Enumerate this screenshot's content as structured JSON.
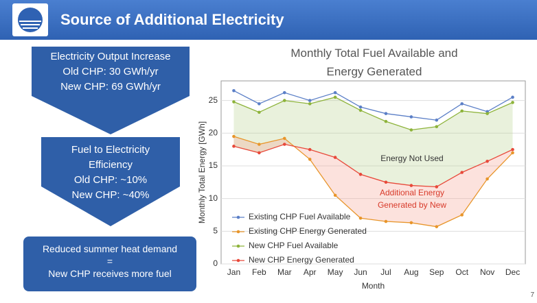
{
  "header": {
    "title": "Source of Additional Electricity"
  },
  "boxes": [
    {
      "lines": [
        "Electricity Output Increase",
        "Old CHP: 30 GWh/yr",
        "New CHP: 69 GWh/yr"
      ]
    },
    {
      "lines": [
        "Fuel to Electricity Efficiency",
        "Old CHP: ~10%",
        "New CHP: ~40%"
      ]
    },
    {
      "lines": [
        "Reduced summer heat demand",
        "=",
        "New CHP receives more fuel"
      ]
    }
  ],
  "page_number": "7",
  "chart_data": {
    "type": "line",
    "title": "Monthly Total Fuel Available and Energy Generated",
    "x_label": "Month",
    "y_label": "Monthly Total Energy [GWh]",
    "categories": [
      "Jan",
      "Feb",
      "Mar",
      "Apr",
      "May",
      "Jun",
      "Jul",
      "Aug",
      "Sep",
      "Oct",
      "Nov",
      "Dec"
    ],
    "series": [
      {
        "name": "Existing CHP Fuel Available",
        "color": "#5b7fc7",
        "values": [
          26.5,
          24.5,
          26.2,
          25,
          26.2,
          24,
          23,
          22.5,
          22,
          24.5,
          23.3,
          25.5
        ]
      },
      {
        "name": "Existing CHP Energy Generated",
        "color": "#e8952a",
        "values": [
          19.5,
          18.3,
          19.2,
          16,
          10.5,
          7,
          6.5,
          6.3,
          5.7,
          7.5,
          13,
          17
        ]
      },
      {
        "name": "New CHP Fuel Available",
        "color": "#8db33a",
        "values": [
          24.8,
          23.2,
          25,
          24.5,
          25.5,
          23.5,
          21.8,
          20.5,
          21,
          23.4,
          23,
          24.7
        ]
      },
      {
        "name": "New CHP Energy Generated",
        "color": "#e8493a",
        "values": [
          18,
          17,
          18.3,
          17.5,
          16.3,
          13.7,
          12.5,
          12,
          11.8,
          14,
          15.7,
          17.5
        ]
      }
    ],
    "annotations": [
      "Energy Not Used",
      "Additional Energy Generated by New CHP"
    ],
    "ylim": [
      0,
      28
    ],
    "yticks": [
      0,
      5,
      10,
      15,
      20,
      25
    ],
    "grid": true
  }
}
